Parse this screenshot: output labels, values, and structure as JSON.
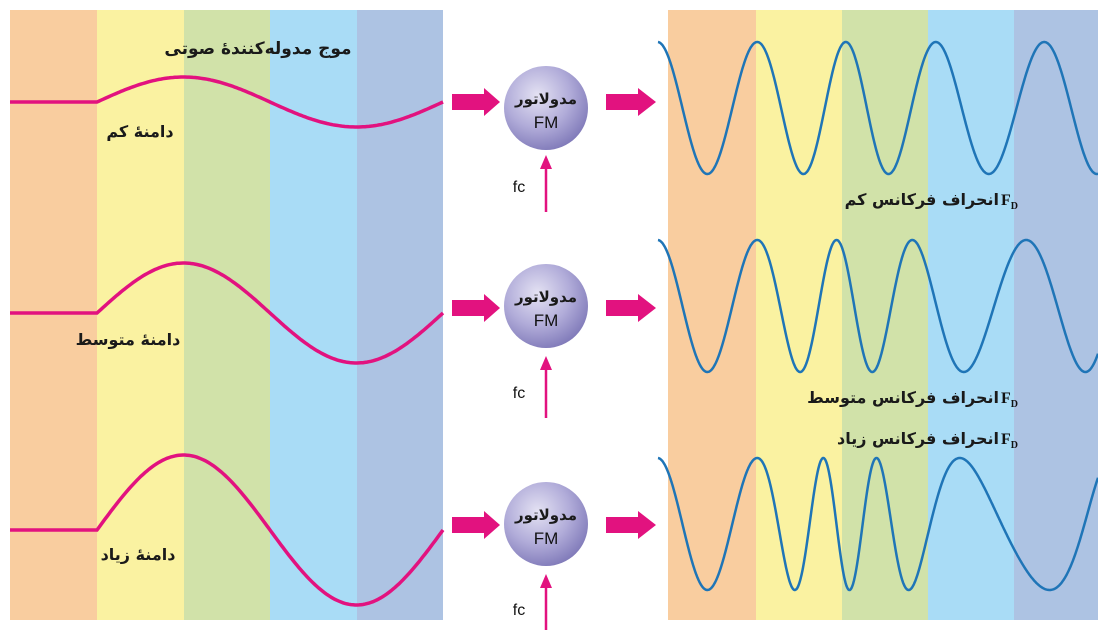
{
  "title": "موج مدوله‌کنندهٔ صوتی",
  "colors": {
    "bands": [
      "#f9cd9f",
      "#faf2a1",
      "#d1e2a9",
      "#a9dcf6",
      "#adc3e3"
    ],
    "audio_wave": "#e2127f",
    "fm_wave": "#1f75b7",
    "arrow": "#e2127f",
    "modulator_fill": "#a39ed0"
  },
  "rows": [
    {
      "amplitude_label": "دامنهٔ کم",
      "modulator_line1": "مدولاتور",
      "modulator_line2": "FM",
      "carrier_label": "fc",
      "deviation_text": "انحراف فرکانس کم",
      "fd_main": "F",
      "fd_sub": "D",
      "amplitude": 1,
      "deviation": 1
    },
    {
      "amplitude_label": "دامنهٔ متوسط",
      "modulator_line1": "مدولاتور",
      "modulator_line2": "FM",
      "carrier_label": "fc",
      "deviation_text": "انحراف فرکانس متوسط",
      "fd_main": "F",
      "fd_sub": "D",
      "amplitude": 2,
      "deviation": 2
    },
    {
      "amplitude_label": "دامنهٔ زیاد",
      "modulator_line1": "مدولاتور",
      "modulator_line2": "FM",
      "carrier_label": "fc",
      "deviation_text": "انحراف فرکانس زیاد",
      "fd_main": "F",
      "fd_sub": "D",
      "amplitude": 3,
      "deviation": 3
    }
  ]
}
